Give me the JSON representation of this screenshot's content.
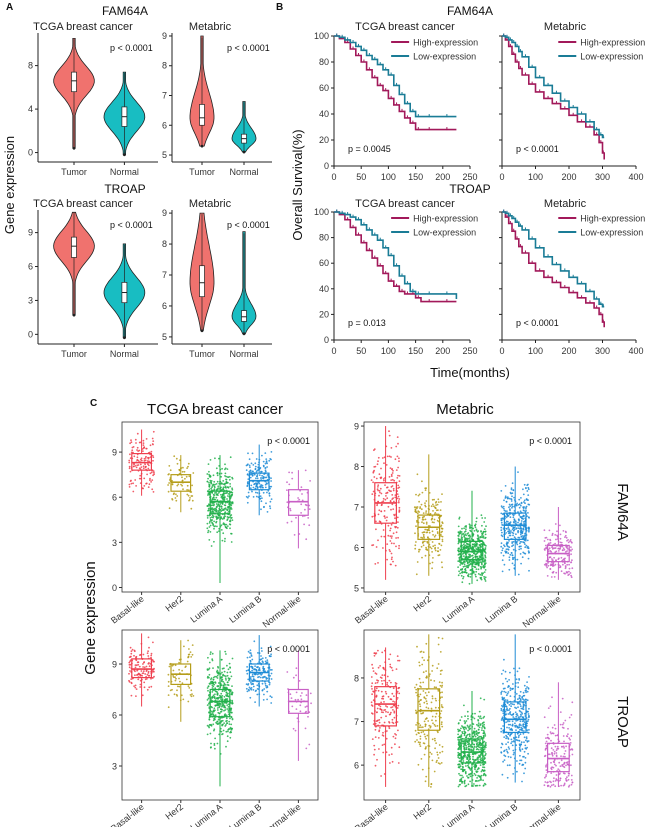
{
  "panel_letters": {
    "a": "A",
    "b": "B",
    "c": "C"
  },
  "genes": {
    "g1": "FAM64A",
    "g2": "TROAP"
  },
  "cohorts": {
    "tcga": "TCGA breast cancer",
    "metabric": "Metabric"
  },
  "panel_a": {
    "ylabel": "Gene expression"
  },
  "panel_b": {
    "ylabel": "Overall Survival(%)",
    "xlabel": "Time(months)"
  },
  "panel_c": {
    "ylabel": "Gene expression"
  },
  "colors": {
    "tumor": "#F0726E",
    "normal": "#18BDC2",
    "high": "#A2195A",
    "low": "#1A7C96",
    "basal": "#EE3F4E",
    "her2": "#B59D1A",
    "luminaA": "#22B04B",
    "luminaB": "#1E8CD6",
    "normallike": "#C85FC5"
  },
  "chart_data": [
    {
      "id": "A1",
      "type": "violin",
      "gene": "FAM64A",
      "cohort": "TCGA breast cancer",
      "categories": [
        "Tumor",
        "Normal"
      ],
      "ylim": [
        -0.5,
        11
      ],
      "yticks": [
        0,
        4,
        8
      ],
      "groups": [
        {
          "median": 6.6,
          "q1": 5.6,
          "q3": 7.4,
          "min": 0.4,
          "max": 10.5
        },
        {
          "median": 3.3,
          "q1": 2.4,
          "q3": 4.2,
          "min": -0.2,
          "max": 7.4
        }
      ],
      "pvalue": "p < 0.0001"
    },
    {
      "id": "A2",
      "type": "violin",
      "gene": "FAM64A",
      "cohort": "Metabric",
      "categories": [
        "Tumor",
        "Normal"
      ],
      "ylim": [
        4.9,
        9.1
      ],
      "yticks": [
        5,
        6,
        7,
        8,
        9
      ],
      "groups": [
        {
          "median": 6.25,
          "q1": 6.0,
          "q3": 6.7,
          "min": 5.3,
          "max": 9.0
        },
        {
          "median": 5.55,
          "q1": 5.4,
          "q3": 5.7,
          "min": 5.1,
          "max": 6.8
        }
      ],
      "pvalue": "p < 0.0001"
    },
    {
      "id": "A3",
      "type": "violin",
      "gene": "TROAP",
      "cohort": "TCGA breast cancer",
      "categories": [
        "Tumor",
        "Normal"
      ],
      "ylim": [
        -0.5,
        11
      ],
      "yticks": [
        0,
        3,
        6,
        9
      ],
      "groups": [
        {
          "median": 7.8,
          "q1": 6.8,
          "q3": 8.6,
          "min": 1.7,
          "max": 10.8
        },
        {
          "median": 3.7,
          "q1": 2.8,
          "q3": 4.6,
          "min": -0.3,
          "max": 8.0
        }
      ],
      "pvalue": "p < 0.0001"
    },
    {
      "id": "A4",
      "type": "violin",
      "gene": "TROAP",
      "cohort": "Metabric",
      "categories": [
        "Tumor",
        "Normal"
      ],
      "ylim": [
        4.9,
        9.1
      ],
      "yticks": [
        5,
        6,
        7,
        8,
        9
      ],
      "groups": [
        {
          "median": 6.75,
          "q1": 6.3,
          "q3": 7.3,
          "min": 5.2,
          "max": 9.0
        },
        {
          "median": 5.65,
          "q1": 5.5,
          "q3": 5.85,
          "min": 5.1,
          "max": 8.4
        }
      ],
      "pvalue": "p < 0.0001"
    },
    {
      "id": "B1",
      "type": "line",
      "gene": "FAM64A",
      "cohort": "TCGA breast cancer",
      "xlim": [
        0,
        250
      ],
      "xticks": [
        0,
        50,
        100,
        150,
        200,
        250
      ],
      "ylim": [
        0,
        100
      ],
      "yticks": [
        0,
        20,
        40,
        60,
        80,
        100
      ],
      "series": [
        {
          "name": "High-expression",
          "x": [
            0,
            10,
            20,
            30,
            40,
            50,
            60,
            70,
            80,
            90,
            100,
            110,
            120,
            130,
            140,
            150,
            160,
            190,
            225
          ],
          "y": [
            100,
            98,
            95,
            90,
            85,
            80,
            74,
            68,
            62,
            58,
            52,
            47,
            42,
            37,
            33,
            28,
            28,
            28,
            28
          ]
        },
        {
          "name": "Low-expression",
          "x": [
            0,
            10,
            20,
            30,
            40,
            50,
            60,
            70,
            80,
            90,
            100,
            110,
            120,
            130,
            140,
            150,
            160,
            190,
            225
          ],
          "y": [
            100,
            99,
            97,
            95,
            92,
            89,
            85,
            82,
            78,
            74,
            70,
            62,
            55,
            48,
            42,
            38,
            38,
            38,
            38
          ]
        }
      ],
      "pvalue": "p = 0.0045"
    },
    {
      "id": "B2",
      "type": "line",
      "gene": "FAM64A",
      "cohort": "Metabric",
      "xlim": [
        0,
        400
      ],
      "xticks": [
        0,
        100,
        200,
        300,
        400
      ],
      "ylim": [
        0,
        100
      ],
      "yticks": [
        0,
        20,
        40,
        60,
        80,
        100
      ],
      "series": [
        {
          "name": "High-expression",
          "x": [
            0,
            10,
            20,
            30,
            40,
            50,
            60,
            80,
            100,
            125,
            150,
            175,
            200,
            225,
            250,
            275,
            290,
            300,
            305
          ],
          "y": [
            100,
            97,
            92,
            86,
            80,
            75,
            70,
            63,
            57,
            52,
            48,
            44,
            39,
            34,
            30,
            24,
            18,
            10,
            5
          ]
        },
        {
          "name": "Low-expression",
          "x": [
            0,
            10,
            20,
            30,
            40,
            50,
            60,
            80,
            100,
            125,
            150,
            175,
            200,
            225,
            250,
            275,
            290,
            300,
            305
          ],
          "y": [
            100,
            99,
            97,
            95,
            92,
            88,
            84,
            76,
            68,
            62,
            56,
            50,
            45,
            40,
            34,
            28,
            24,
            22,
            22
          ]
        }
      ],
      "pvalue": "p < 0.0001"
    },
    {
      "id": "B3",
      "type": "line",
      "gene": "TROAP",
      "cohort": "TCGA breast cancer",
      "xlim": [
        0,
        250
      ],
      "xticks": [
        0,
        50,
        100,
        150,
        200,
        250
      ],
      "ylim": [
        0,
        100
      ],
      "yticks": [
        0,
        20,
        40,
        60,
        80,
        100
      ],
      "series": [
        {
          "name": "High-expression",
          "x": [
            0,
            10,
            20,
            30,
            40,
            50,
            60,
            70,
            80,
            90,
            100,
            110,
            120,
            130,
            140,
            150,
            160,
            190,
            225
          ],
          "y": [
            100,
            98,
            94,
            88,
            82,
            76,
            70,
            64,
            58,
            52,
            46,
            42,
            38,
            36,
            36,
            33,
            30,
            30,
            30
          ]
        },
        {
          "name": "Low-expression",
          "x": [
            0,
            10,
            20,
            30,
            40,
            50,
            60,
            70,
            80,
            90,
            100,
            110,
            120,
            130,
            140,
            150,
            160,
            190,
            225
          ],
          "y": [
            100,
            99,
            98,
            96,
            94,
            90,
            86,
            82,
            78,
            72,
            66,
            58,
            50,
            44,
            38,
            36,
            36,
            36,
            32
          ]
        }
      ],
      "pvalue": "p = 0.013"
    },
    {
      "id": "B4",
      "type": "line",
      "gene": "TROAP",
      "cohort": "Metabric",
      "xlim": [
        0,
        400
      ],
      "xticks": [
        0,
        100,
        200,
        300,
        400
      ],
      "ylim": [
        0,
        100
      ],
      "yticks": [
        0,
        20,
        40,
        60,
        80,
        100
      ],
      "series": [
        {
          "name": "High-expression",
          "x": [
            0,
            10,
            20,
            30,
            40,
            50,
            60,
            80,
            100,
            125,
            150,
            175,
            200,
            225,
            250,
            275,
            290,
            300,
            305
          ],
          "y": [
            100,
            96,
            91,
            85,
            79,
            73,
            68,
            60,
            54,
            49,
            45,
            41,
            37,
            33,
            29,
            25,
            20,
            14,
            10
          ]
        },
        {
          "name": "Low-expression",
          "x": [
            0,
            10,
            20,
            30,
            40,
            50,
            60,
            80,
            100,
            125,
            150,
            175,
            200,
            225,
            250,
            275,
            290,
            300,
            305
          ],
          "y": [
            100,
            99,
            97,
            95,
            92,
            89,
            86,
            79,
            72,
            65,
            59,
            54,
            49,
            44,
            38,
            32,
            28,
            26,
            26
          ]
        }
      ],
      "pvalue": "p < 0.0001"
    },
    {
      "id": "C1",
      "type": "box",
      "gene": "FAM64A",
      "cohort": "TCGA breast cancer",
      "categories": [
        "Basal-like",
        "Her2",
        "Lumina A",
        "Lumina B",
        "Normal-like"
      ],
      "ylim": [
        -0.3,
        11
      ],
      "yticks": [
        0,
        3,
        6,
        9
      ],
      "boxes": [
        {
          "median": 8.3,
          "q1": 7.8,
          "q3": 8.9,
          "min": 6.1,
          "max": 10.5
        },
        {
          "median": 7.0,
          "q1": 6.4,
          "q3": 7.5,
          "min": 5.0,
          "max": 8.8
        },
        {
          "median": 5.7,
          "q1": 4.9,
          "q3": 6.4,
          "min": 0.3,
          "max": 8.8
        },
        {
          "median": 7.1,
          "q1": 6.5,
          "q3": 7.6,
          "min": 4.8,
          "max": 9.5
        },
        {
          "median": 5.7,
          "q1": 4.8,
          "q3": 6.5,
          "min": 2.6,
          "max": 7.8
        }
      ],
      "pvalue": "p < 0.0001"
    },
    {
      "id": "C2",
      "type": "box",
      "gene": "FAM64A",
      "cohort": "Metabric",
      "categories": [
        "Basal-like",
        "Her2",
        "Lumina A",
        "Lumina B",
        "Normal-like"
      ],
      "ylim": [
        4.9,
        9.1
      ],
      "yticks": [
        5,
        6,
        7,
        8,
        9
      ],
      "boxes": [
        {
          "median": 7.1,
          "q1": 6.6,
          "q3": 7.6,
          "min": 5.2,
          "max": 9.0
        },
        {
          "median": 6.5,
          "q1": 6.2,
          "q3": 6.8,
          "min": 5.3,
          "max": 8.3
        },
        {
          "median": 5.9,
          "q1": 5.7,
          "q3": 6.15,
          "min": 5.1,
          "max": 7.4
        },
        {
          "median": 6.55,
          "q1": 6.2,
          "q3": 6.85,
          "min": 5.3,
          "max": 8.0
        },
        {
          "median": 5.85,
          "q1": 5.65,
          "q3": 6.05,
          "min": 5.2,
          "max": 7.0
        }
      ],
      "pvalue": "p < 0.0001"
    },
    {
      "id": "C3",
      "type": "box",
      "gene": "TROAP",
      "cohort": "TCGA breast cancer",
      "categories": [
        "Basal-like",
        "Her2",
        "Lumina A",
        "Lumina B",
        "Normal-like"
      ],
      "ylim": [
        1.0,
        11
      ],
      "yticks": [
        3,
        6,
        9
      ],
      "boxes": [
        {
          "median": 8.7,
          "q1": 8.2,
          "q3": 9.3,
          "min": 6.5,
          "max": 10.8
        },
        {
          "median": 8.4,
          "q1": 7.8,
          "q3": 9.0,
          "min": 5.6,
          "max": 10.4
        },
        {
          "median": 6.8,
          "q1": 5.9,
          "q3": 7.5,
          "min": 1.8,
          "max": 9.8
        },
        {
          "median": 8.5,
          "q1": 8.0,
          "q3": 9.0,
          "min": 6.5,
          "max": 10.7
        },
        {
          "median": 6.8,
          "q1": 6.1,
          "q3": 7.5,
          "min": 3.3,
          "max": 9.8
        }
      ],
      "pvalue": "p < 0.0001"
    },
    {
      "id": "C4",
      "type": "box",
      "gene": "TROAP",
      "cohort": "Metabric",
      "categories": [
        "Basal-like",
        "Her2",
        "Lumina A",
        "Lumina B",
        "Normal-like"
      ],
      "ylim": [
        5.2,
        9.1
      ],
      "yticks": [
        6,
        7,
        8
      ],
      "boxes": [
        {
          "median": 7.4,
          "q1": 6.9,
          "q3": 7.8,
          "min": 5.5,
          "max": 8.7
        },
        {
          "median": 7.25,
          "q1": 6.8,
          "q3": 7.75,
          "min": 5.5,
          "max": 9.0
        },
        {
          "median": 6.3,
          "q1": 6.05,
          "q3": 6.6,
          "min": 5.5,
          "max": 7.7
        },
        {
          "median": 7.05,
          "q1": 6.75,
          "q3": 7.45,
          "min": 5.6,
          "max": 9.0
        },
        {
          "median": 6.15,
          "q1": 5.85,
          "q3": 6.5,
          "min": 5.5,
          "max": 7.9
        }
      ],
      "pvalue": "p < 0.0001"
    }
  ]
}
